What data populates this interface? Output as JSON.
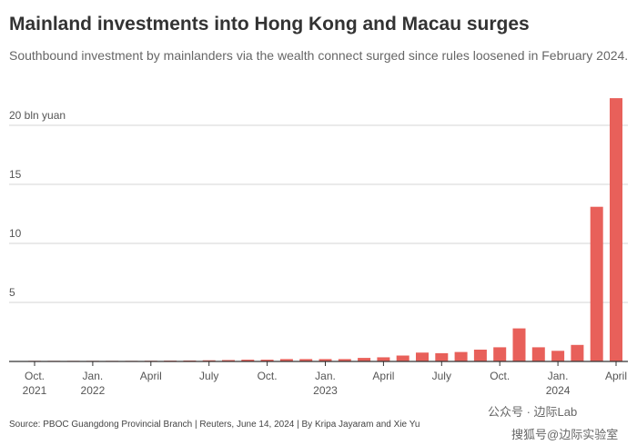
{
  "chart_data": {
    "type": "bar",
    "title": "Mainland investments into Hong Kong and Macau surges",
    "subtitle": "Southbound investment by mainlanders via the wealth connect surged since rules loosened in February 2024.",
    "source": "Source: PBOC Guangdong Provincial Branch | Reuters, June 14, 2024 | By Kripa Jayaram and Xie Yu",
    "watermark": [
      "公众号 · 边际Lab",
      "搜狐号@边际实验室"
    ],
    "categories": [
      "Oct. 2021",
      null,
      null,
      "Jan. 2022",
      null,
      null,
      "April",
      null,
      null,
      "July",
      null,
      null,
      "Oct.",
      null,
      null,
      "Jan. 2023",
      null,
      null,
      "April",
      null,
      null,
      "July",
      null,
      null,
      "Oct.",
      null,
      null,
      "Jan. 2024",
      null,
      null,
      "April"
    ],
    "values": [
      0.05,
      0.05,
      0.05,
      0.05,
      0.05,
      0.05,
      0.06,
      0.07,
      0.08,
      0.1,
      0.12,
      0.15,
      0.15,
      0.2,
      0.2,
      0.2,
      0.2,
      0.3,
      0.35,
      0.5,
      0.75,
      0.7,
      0.8,
      1.0,
      1.2,
      2.8,
      1.2,
      0.9,
      1.4,
      13.1,
      22.3
    ],
    "color": "#e8605a",
    "ylim": [
      0,
      22.5
    ],
    "yticks": [
      5,
      10,
      15,
      {
        "value": 20,
        "label": "20 bln yuan"
      }
    ],
    "grid": true
  }
}
